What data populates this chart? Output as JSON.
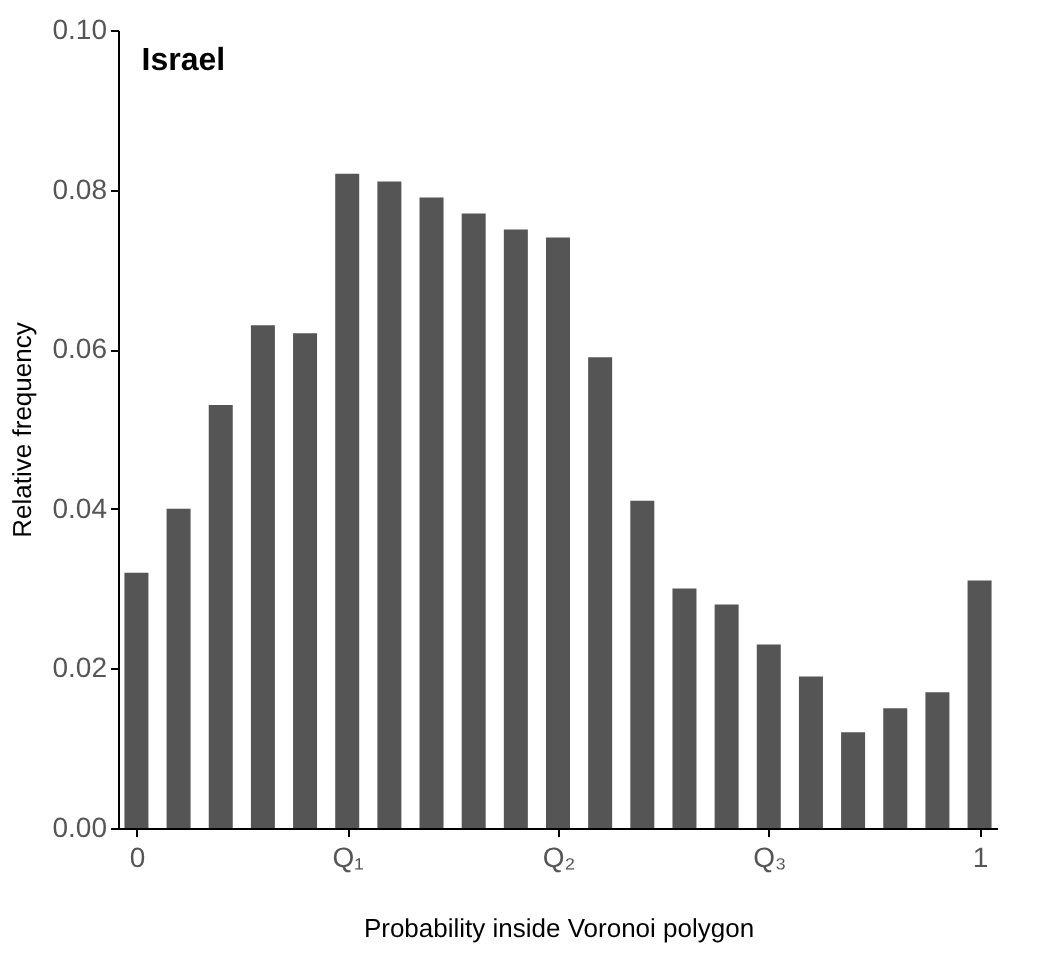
{
  "chart_data": {
    "type": "bar",
    "title": "Israel",
    "xlabel": "Probability inside Voronoi polygon",
    "ylabel": "Relative frequency",
    "x": [
      0,
      0.05,
      0.1,
      0.15,
      0.2,
      0.25,
      0.3,
      0.35,
      0.4,
      0.45,
      0.5,
      0.55,
      0.6,
      0.65,
      0.7,
      0.75,
      0.8,
      0.85,
      0.9,
      0.95,
      1
    ],
    "values": [
      0.032,
      0.04,
      0.053,
      0.063,
      0.062,
      0.082,
      0.081,
      0.079,
      0.077,
      0.075,
      0.074,
      0.059,
      0.041,
      0.03,
      0.028,
      0.023,
      0.019,
      0.012,
      0.015,
      0.017,
      0.031
    ],
    "color": "#555555",
    "xlim": [
      -0.01,
      1.01
    ],
    "xticks": [
      0,
      {
        "value": 0.25,
        "label": "Q₁"
      },
      {
        "value": 0.5,
        "label": "Q₂"
      },
      {
        "value": 0.75,
        "label": "Q₃"
      },
      1
    ],
    "ylim": [
      0,
      0.1
    ],
    "yticks": [
      {
        "value": 0,
        "label": "0.00"
      },
      {
        "value": 0.02,
        "label": "0.02"
      },
      {
        "value": 0.04,
        "label": "0.04"
      },
      {
        "value": 0.06,
        "label": "0.06"
      },
      {
        "value": 0.08,
        "label": "0.08"
      },
      {
        "value": 0.1,
        "label": "0.10"
      }
    ],
    "grid": false
  }
}
